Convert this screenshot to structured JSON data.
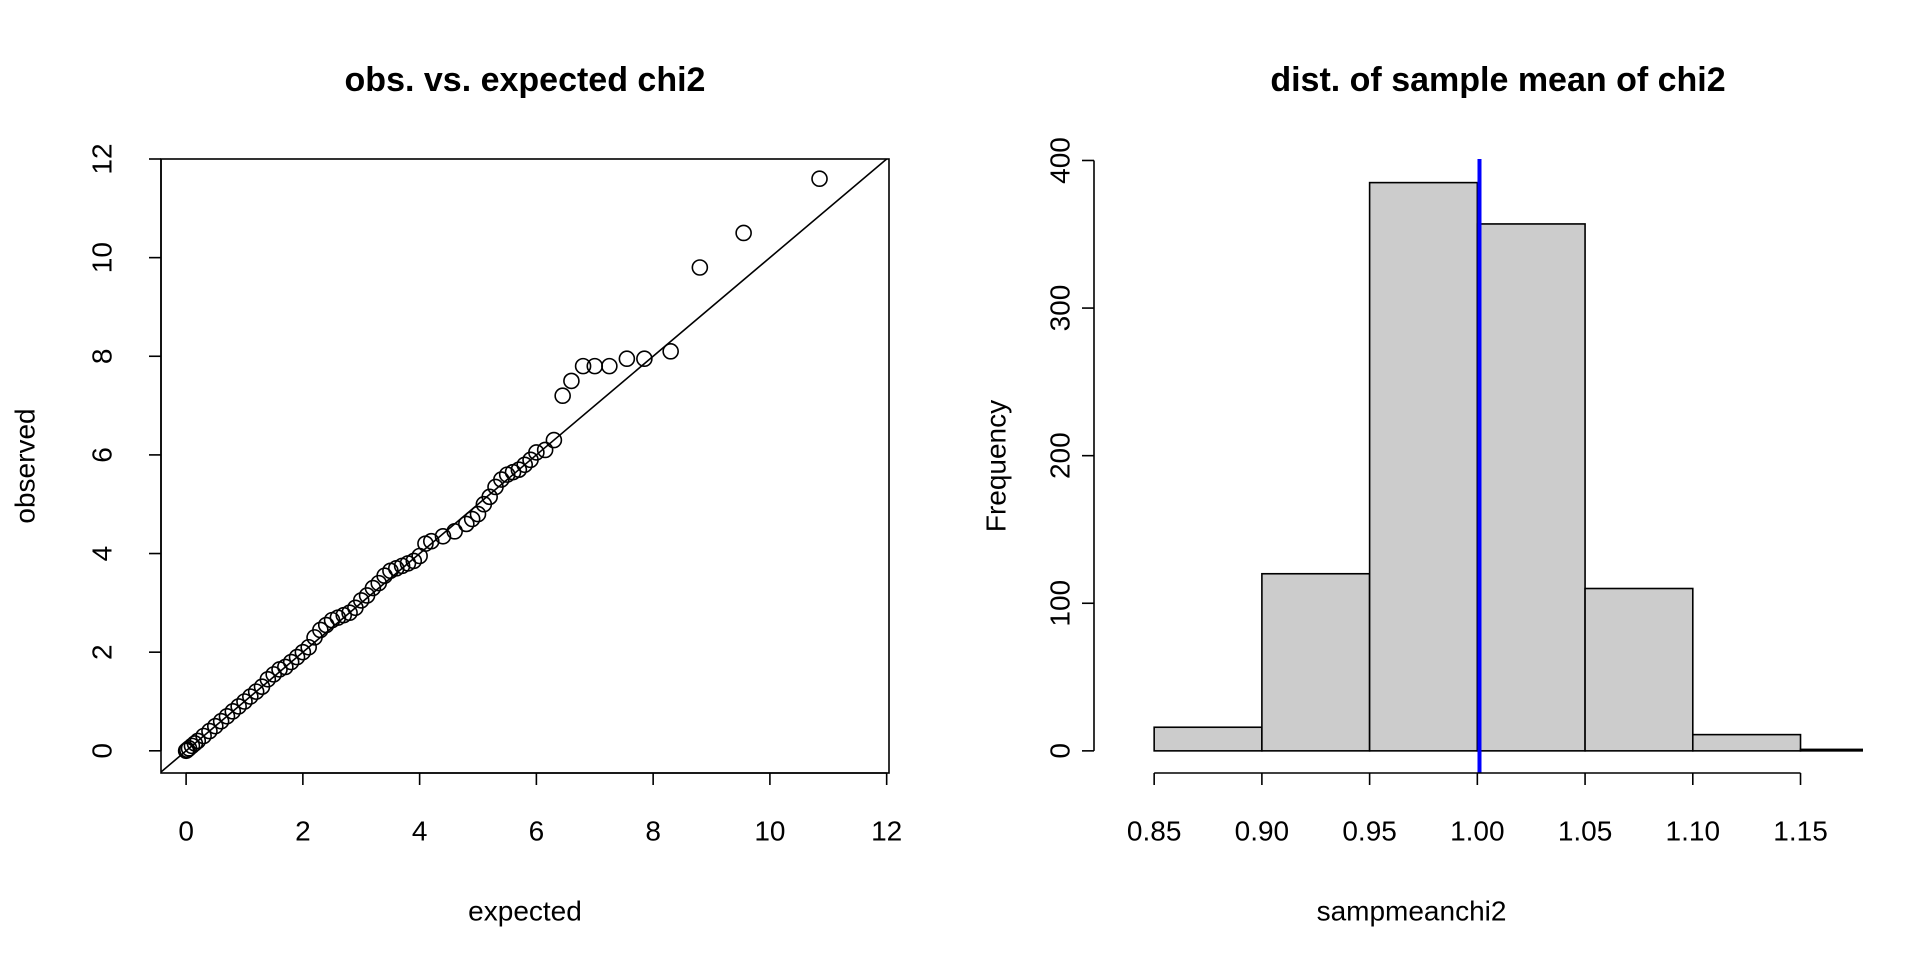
{
  "chart_data": [
    {
      "type": "scatter",
      "title": "obs. vs. expected chi2",
      "x_label": "expected",
      "y_label": "observed",
      "x": [
        0,
        0.02,
        0.05,
        0.1,
        0.15,
        0.2,
        0.3,
        0.4,
        0.5,
        0.6,
        0.7,
        0.8,
        0.9,
        1.0,
        1.1,
        1.2,
        1.3,
        1.4,
        1.5,
        1.6,
        1.7,
        1.8,
        1.9,
        2.0,
        2.1,
        2.2,
        2.3,
        2.4,
        2.5,
        2.6,
        2.7,
        2.8,
        2.9,
        3.0,
        3.1,
        3.2,
        3.3,
        3.4,
        3.5,
        3.6,
        3.7,
        3.8,
        3.9,
        4.0,
        4.1,
        4.2,
        4.4,
        4.6,
        4.8,
        4.9,
        5.0,
        5.1,
        5.2,
        5.3,
        5.4,
        5.5,
        5.6,
        5.7,
        5.8,
        5.9,
        6.0,
        6.15,
        6.3,
        6.45,
        6.6,
        6.8,
        7.0,
        7.25,
        7.55,
        7.85,
        8.3,
        8.8,
        9.55,
        10.85
      ],
      "y": [
        0,
        0.02,
        0.05,
        0.1,
        0.15,
        0.2,
        0.3,
        0.4,
        0.5,
        0.6,
        0.7,
        0.8,
        0.9,
        1.0,
        1.1,
        1.2,
        1.3,
        1.45,
        1.55,
        1.65,
        1.7,
        1.8,
        1.9,
        2.0,
        2.1,
        2.3,
        2.45,
        2.55,
        2.65,
        2.7,
        2.75,
        2.8,
        2.9,
        3.05,
        3.15,
        3.3,
        3.4,
        3.55,
        3.65,
        3.7,
        3.75,
        3.8,
        3.85,
        3.95,
        4.2,
        4.25,
        4.35,
        4.45,
        4.6,
        4.7,
        4.8,
        5.0,
        5.15,
        5.35,
        5.5,
        5.6,
        5.65,
        5.7,
        5.8,
        5.9,
        6.05,
        6.1,
        6.3,
        7.2,
        7.5,
        7.8,
        7.8,
        7.8,
        7.95,
        7.95,
        8.1,
        9.8,
        10.5,
        11.6
      ],
      "color": "#000000",
      "reference_line": {
        "slope": 1,
        "intercept": 0
      },
      "xlim": [
        -0.43,
        12.04
      ],
      "ylim": [
        -0.45,
        12.0
      ],
      "xticks": [
        0,
        2,
        4,
        6,
        8,
        10,
        12
      ],
      "yticks": [
        0,
        2,
        4,
        6,
        8,
        10,
        12
      ],
      "box": true
    },
    {
      "type": "histogram",
      "title": "dist. of sample mean of chi2",
      "x_label": "sampmeanchi2",
      "y_label": "Frequency",
      "bins": [
        0.85,
        0.9,
        0.95,
        1.0,
        1.05,
        1.1,
        1.15,
        1.2
      ],
      "counts": [
        16,
        120,
        385,
        357,
        110,
        11,
        1
      ],
      "color": "#cccccc",
      "vline": 1.001,
      "vline_color": "#0000ff",
      "xlim": [
        0.836,
        1.179
      ],
      "ylim": [
        -15,
        401
      ],
      "xticks": [
        0.85,
        {
          "value": 0.9,
          "label": "0.90"
        },
        0.95,
        {
          "value": 1.0,
          "label": "1.00"
        },
        1.05,
        {
          "value": 1.1,
          "label": "1.10"
        },
        1.15
      ],
      "yticks": [
        0,
        100,
        200,
        300,
        400
      ],
      "box": false
    }
  ]
}
